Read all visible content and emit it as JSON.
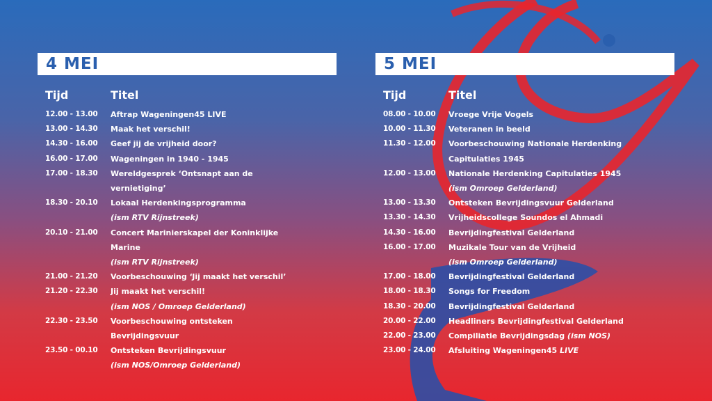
{
  "columns": [
    {
      "heading": "4 MEI",
      "time_header": "Tijd",
      "title_header": "Titel",
      "rows": [
        {
          "time": "12.00 - 13.00",
          "title": "Aftrap Wageningen45 LIVE"
        },
        {
          "time": "13.00 - 14.30",
          "title": "Maak het verschil!"
        },
        {
          "time": "14.30 - 16.00",
          "title": "Geef jij de vrijheid door?"
        },
        {
          "time": "16.00 - 17.00",
          "title": "Wageningen in 1940 - 1945"
        },
        {
          "time": "17.00 - 18.30",
          "title": "Wereldgesprek ‘Ontsnapt aan de vernietiging’"
        },
        {
          "time": "18.30 - 20.10",
          "title": "Lokaal Herdenkingsprogramma",
          "note": "(ism RTV Rijnstreek)"
        },
        {
          "time": "20.10 - 21.00",
          "title": "Concert Mariniers­kapel der Koninklijke Marine",
          "note": "(ism RTV Rijnstreek)"
        },
        {
          "time": "21.00 - 21.20",
          "title": "Voorbeschouwing ‘Jij maakt het verschil’"
        },
        {
          "time": "21.20 - 22.30",
          "title": "Jij maakt het verschil!",
          "note": "(ism NOS / Omroep Gelderland)"
        },
        {
          "time": "22.30 - 23.50",
          "title": "Voorbeschouwing ontsteken Bevrijdingsvuur"
        },
        {
          "time": "23.50 - 00.10",
          "title": "Ontsteken Bevrijdingsvuur",
          "note": "(ism NOS/Omroep Gelderland)"
        }
      ]
    },
    {
      "heading": "5 MEI",
      "time_header": "Tijd",
      "title_header": "Titel",
      "rows": [
        {
          "time": "08.00 - 10.00",
          "title": "Vroege Vrije Vogels"
        },
        {
          "time": "10.00 - 11.30",
          "title": "Veteranen in beeld"
        },
        {
          "time": "11.30 - 12.00",
          "title": "Voorbeschouwing Nationale Herdenking Capitulaties 1945"
        },
        {
          "time": "12.00 - 13.00",
          "title": "Nationale Herdenking Capitulaties 1945",
          "note": "(ism Omroep Gelderland)"
        },
        {
          "time": "13.00 - 13.30",
          "title": "Ontsteken Bevrijdingsvuur Gelderland"
        },
        {
          "time": "13.30 - 14.30",
          "title": "Vrijheidscollege Soundos el Ahmadi"
        },
        {
          "time": "14.30 - 16.00",
          "title": "Bevrijdingfestival Gelderland"
        },
        {
          "time": "16.00 - 17.00",
          "title": "Muzikale Tour van de Vrijheid",
          "note": "(ism Omroep Gelderland)"
        },
        {
          "time": "17.00 - 18.00",
          "title": "Bevrijdingfestival Gelderland"
        },
        {
          "time": "18.00 - 18.30",
          "title": "Songs for Freedom"
        },
        {
          "time": "18.30 - 20.00",
          "title": "Bevrijdingfestival Gelderland"
        },
        {
          "time": "20.00 - 22.00",
          "title": "Headliners Bevrijdingfestival Gelderland"
        },
        {
          "time": "22.00 - 23.00",
          "title": "Compiliatie Bevrijdingsdag",
          "title_em": "(ism NOS)"
        },
        {
          "time": "23.00 - 24.00",
          "title": "Afsluiting Wageningen45",
          "title_em": "LIVE"
        }
      ]
    }
  ]
}
